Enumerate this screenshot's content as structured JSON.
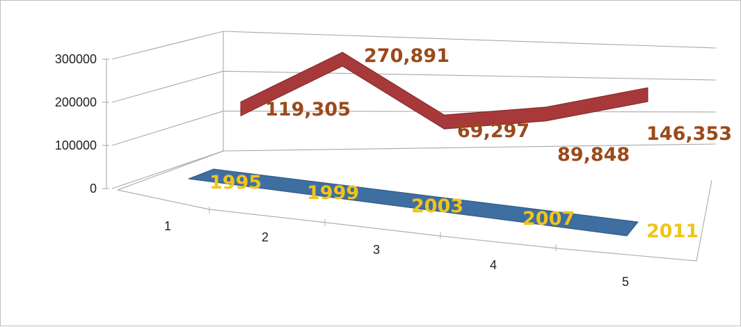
{
  "chart_data": {
    "type": "line",
    "title": "",
    "xlabel": "",
    "ylabel": "",
    "categories": [
      "1",
      "2",
      "3",
      "4",
      "5"
    ],
    "ylim": [
      0,
      300000
    ],
    "yticks": [
      "0",
      "100000",
      "200000",
      "300000"
    ],
    "grid": true,
    "legend": "none",
    "view": "3d",
    "series": [
      {
        "values": [
          1995,
          1999,
          2003,
          2007,
          2011
        ],
        "labels": [
          "1995",
          "1999",
          "2003",
          "2007",
          "2011"
        ],
        "color": "#3f6ea0",
        "label_color": "#f0c419"
      },
      {
        "values": [
          119305,
          270891,
          69297,
          89848,
          146353
        ],
        "labels": [
          "119,305",
          "270,891",
          "69,297",
          "89,848",
          "146,353"
        ],
        "color": "#a8393a",
        "label_color": "#9a4a1a"
      }
    ]
  }
}
